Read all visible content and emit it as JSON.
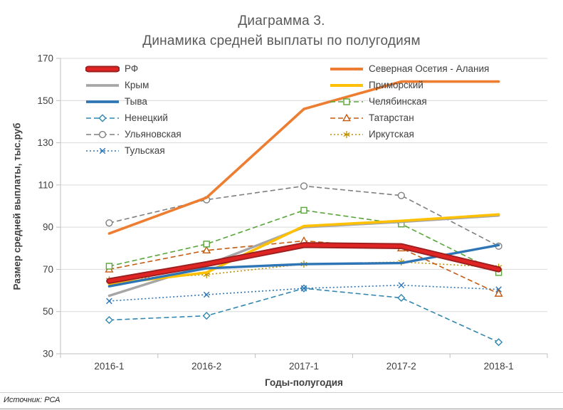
{
  "title": {
    "line1": "Диаграмма 3.",
    "line2": "Динамика средней выплаты по полугодиям"
  },
  "source": "Источник: РСА",
  "chart_data": {
    "type": "line",
    "title": "Диаграмма 3. Динамика средней выплаты по полугодиям",
    "xlabel": "Годы-полугодия",
    "ylabel": "Размер средней выплаты, тыс.руб",
    "categories": [
      "2016-1",
      "2016-2",
      "2017-1",
      "2017-2",
      "2018-1"
    ],
    "ylim": [
      30,
      170
    ],
    "yticks": [
      30,
      50,
      70,
      90,
      110,
      130,
      150,
      170
    ],
    "grid": true,
    "grid_color": "#d9d9d9",
    "axis_color": "#bfbfbf",
    "text_color": "#404040",
    "title_color": "#595959",
    "legend_position": "inside-top, two columns",
    "series": [
      {
        "name": "РФ",
        "values": [
          64.5,
          72.5,
          81.5,
          81,
          70
        ],
        "color": "#e02424",
        "edge_color": "#9c1f1f",
        "width": 6,
        "dash": "solid",
        "marker": "none"
      },
      {
        "name": "Крым",
        "values": [
          57.5,
          72,
          90,
          92.5,
          95.5
        ],
        "color": "#a6a6a6",
        "width": 3.4,
        "dash": "solid",
        "marker": "none"
      },
      {
        "name": "Тыва",
        "values": [
          62,
          70.5,
          72.5,
          73,
          81.5
        ],
        "color": "#2e75b6",
        "width": 3.4,
        "dash": "solid",
        "marker": "none"
      },
      {
        "name": "Ненецкий",
        "values": [
          46,
          48,
          61,
          56.5,
          35.5
        ],
        "color": "#3187b0",
        "width": 1.6,
        "dash": "dashed",
        "marker": "diamond"
      },
      {
        "name": "Ульяновская",
        "values": [
          92,
          103,
          109.5,
          105,
          81
        ],
        "color": "#7f7f7f",
        "width": 1.6,
        "dash": "dashed",
        "marker": "circle"
      },
      {
        "name": "Тульская",
        "values": [
          55,
          58,
          61,
          62.5,
          60.5
        ],
        "color": "#2e75b6",
        "width": 1.6,
        "dash": "dotted",
        "marker": "x"
      },
      {
        "name": "Северная Осетия - Алания",
        "values": [
          87,
          104,
          146,
          159,
          159
        ],
        "color": "#ed7d31",
        "width": 3.6,
        "dash": "solid",
        "marker": "none"
      },
      {
        "name": "Приморский",
        "values": [
          63,
          68.5,
          90.5,
          93,
          96
        ],
        "color": "#ffc000",
        "width": 3.6,
        "dash": "solid",
        "marker": "none"
      },
      {
        "name": "Челябинская",
        "values": [
          71.5,
          82,
          98,
          91.5,
          68.5
        ],
        "color": "#57a639",
        "width": 1.6,
        "dash": "dashed",
        "marker": "square"
      },
      {
        "name": "Татарстан",
        "values": [
          70,
          79,
          83.5,
          80,
          58.5
        ],
        "color": "#c55a11",
        "width": 1.6,
        "dash": "dashed",
        "marker": "triangle"
      },
      {
        "name": "Иркутская",
        "values": [
          65,
          67.5,
          72.5,
          73.5,
          71
        ],
        "color": "#bf8f00",
        "width": 1.6,
        "dash": "dotted",
        "marker": "asterisk"
      }
    ],
    "legend_columns": {
      "left": [
        "РФ",
        "Крым",
        "Тыва",
        "Ненецкий",
        "Ульяновская",
        "Тульская"
      ],
      "right": [
        "Северная Осетия - Алания",
        "Приморский",
        "Челябинская",
        "Татарстан",
        "Иркутская"
      ]
    }
  }
}
